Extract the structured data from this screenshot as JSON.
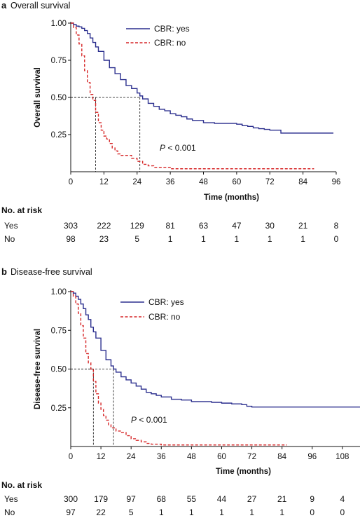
{
  "chart_data": [
    {
      "type": "line",
      "panel": "a",
      "title": "Overall survival",
      "xlabel": "Time (months)",
      "ylabel": "Overall survival",
      "xlim": [
        0,
        96
      ],
      "ylim": [
        0,
        1
      ],
      "xticks": [
        0,
        12,
        24,
        36,
        48,
        60,
        72,
        84,
        96
      ],
      "yticks": [
        "1.00",
        "0.75",
        "0.50",
        "0.25"
      ],
      "yticks_values": [
        1.0,
        0.75,
        0.5,
        0.25
      ],
      "annotation": "P < 0.001",
      "annotation_p": "P",
      "annotation_rest": " < 0.001",
      "legend": "top-center",
      "median_lines": [
        {
          "x": 9,
          "y": 0.5
        },
        {
          "x": 25,
          "y": 0.5
        }
      ],
      "series": [
        {
          "name": "CBR: yes",
          "color": "#2b2f8e",
          "style": "solid",
          "x": [
            0,
            1,
            2,
            3,
            4,
            5,
            6,
            7,
            8,
            9,
            10,
            12,
            14,
            16,
            18,
            20,
            22,
            24,
            25,
            26,
            28,
            30,
            32,
            34,
            36,
            38,
            40,
            42,
            44,
            48,
            52,
            56,
            60,
            62,
            64,
            66,
            68,
            70,
            72,
            76,
            80,
            84,
            88,
            92,
            95
          ],
          "y": [
            1.0,
            0.99,
            0.98,
            0.975,
            0.965,
            0.95,
            0.93,
            0.9,
            0.87,
            0.84,
            0.81,
            0.75,
            0.7,
            0.66,
            0.62,
            0.58,
            0.56,
            0.53,
            0.51,
            0.49,
            0.46,
            0.44,
            0.42,
            0.41,
            0.39,
            0.38,
            0.37,
            0.355,
            0.345,
            0.33,
            0.325,
            0.325,
            0.32,
            0.31,
            0.305,
            0.295,
            0.29,
            0.285,
            0.28,
            0.26,
            0.26,
            0.26,
            0.26,
            0.26,
            0.26
          ]
        },
        {
          "name": "CBR: no",
          "color": "#d62728",
          "style": "dashed",
          "x": [
            0,
            1,
            2,
            3,
            4,
            5,
            6,
            7,
            8,
            9,
            10,
            11,
            12,
            13,
            14,
            15,
            16,
            17,
            18,
            20,
            22,
            24,
            26,
            28,
            30,
            36,
            48,
            60,
            72,
            84,
            88
          ],
          "y": [
            1.0,
            0.97,
            0.92,
            0.86,
            0.78,
            0.68,
            0.6,
            0.52,
            0.48,
            0.4,
            0.33,
            0.28,
            0.24,
            0.22,
            0.19,
            0.16,
            0.14,
            0.12,
            0.11,
            0.11,
            0.09,
            0.07,
            0.05,
            0.04,
            0.03,
            0.02,
            0.02,
            0.02,
            0.02,
            0.02,
            0.02
          ]
        }
      ],
      "risk_table": {
        "title": "No. at risk",
        "rows": [
          {
            "label": "Yes",
            "values": [
              "303",
              "222",
              "129",
              "81",
              "63",
              "47",
              "30",
              "21",
              "8"
            ]
          },
          {
            "label": "No",
            "values": [
              "98",
              "23",
              "5",
              "1",
              "1",
              "1",
              "1",
              "1",
              "0"
            ]
          }
        ]
      }
    },
    {
      "type": "line",
      "panel": "b",
      "title": "Disease-free survival",
      "xlabel": "Time (months)",
      "ylabel": "Disease-free survival",
      "xlim": [
        0,
        115
      ],
      "ylim": [
        0,
        1
      ],
      "xticks": [
        0,
        12,
        24,
        36,
        48,
        60,
        72,
        84,
        96,
        108
      ],
      "yticks": [
        "1.00",
        "0.75",
        "0.50",
        "0.25"
      ],
      "yticks_values": [
        1.0,
        0.75,
        0.5,
        0.25
      ],
      "annotation": "P < 0.001",
      "annotation_p": "P",
      "annotation_rest": " < 0.001",
      "legend": "top-center",
      "median_lines": [
        {
          "x": 9,
          "y": 0.5
        },
        {
          "x": 17,
          "y": 0.5
        }
      ],
      "series": [
        {
          "name": "CBR: yes",
          "color": "#2b2f8e",
          "style": "solid",
          "x": [
            0,
            1,
            2,
            3,
            4,
            5,
            6,
            7,
            8,
            9,
            10,
            12,
            14,
            16,
            17,
            18,
            20,
            22,
            24,
            26,
            28,
            30,
            32,
            34,
            36,
            40,
            44,
            48,
            52,
            56,
            60,
            64,
            68,
            70,
            72,
            80,
            90,
            100,
            110,
            115
          ],
          "y": [
            1.0,
            0.99,
            0.97,
            0.95,
            0.92,
            0.89,
            0.85,
            0.82,
            0.77,
            0.74,
            0.7,
            0.62,
            0.56,
            0.52,
            0.5,
            0.48,
            0.45,
            0.43,
            0.41,
            0.39,
            0.37,
            0.35,
            0.34,
            0.33,
            0.32,
            0.305,
            0.3,
            0.29,
            0.29,
            0.285,
            0.28,
            0.275,
            0.27,
            0.26,
            0.255,
            0.255,
            0.255,
            0.255,
            0.255,
            0.255
          ]
        },
        {
          "name": "CBR: no",
          "color": "#d62728",
          "style": "dashed",
          "x": [
            0,
            1,
            2,
            3,
            4,
            5,
            6,
            7,
            8,
            9,
            10,
            11,
            12,
            13,
            14,
            15,
            16,
            18,
            20,
            22,
            24,
            26,
            28,
            30,
            32,
            36,
            48,
            60,
            72,
            84,
            86
          ],
          "y": [
            1.0,
            0.97,
            0.92,
            0.86,
            0.78,
            0.7,
            0.6,
            0.54,
            0.5,
            0.42,
            0.34,
            0.28,
            0.24,
            0.2,
            0.17,
            0.14,
            0.12,
            0.1,
            0.09,
            0.07,
            0.05,
            0.04,
            0.03,
            0.02,
            0.015,
            0.01,
            0.01,
            0.01,
            0.01,
            0.01,
            0.01
          ]
        }
      ],
      "risk_table": {
        "title": "No. at risk",
        "rows": [
          {
            "label": "Yes",
            "values": [
              "300",
              "179",
              "97",
              "68",
              "55",
              "44",
              "27",
              "21",
              "9",
              "4"
            ]
          },
          {
            "label": "No",
            "values": [
              "97",
              "22",
              "5",
              "1",
              "1",
              "1",
              "1",
              "1",
              "0",
              "0"
            ]
          }
        ]
      }
    }
  ]
}
